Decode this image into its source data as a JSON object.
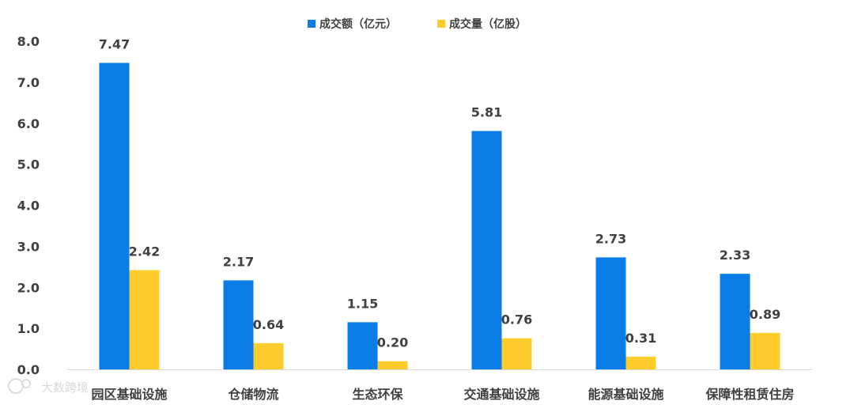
{
  "chart_data": {
    "type": "bar",
    "categories": [
      "园区基础设施",
      "仓储物流",
      "生态环保",
      "交通基础设施",
      "能源基础设施",
      "保障性租赁住房"
    ],
    "series": [
      {
        "name": "成交额（亿元）",
        "color": "#0a7ce6",
        "values": [
          7.47,
          2.17,
          1.15,
          5.81,
          2.73,
          2.33
        ]
      },
      {
        "name": "成交量（亿股）",
        "color": "#ffcc2e",
        "values": [
          2.42,
          0.64,
          0.2,
          0.76,
          0.31,
          0.89
        ]
      }
    ],
    "ylim": [
      0,
      8
    ],
    "yticks": [
      "0.0",
      "1.0",
      "2.0",
      "3.0",
      "4.0",
      "5.0",
      "6.0",
      "7.0",
      "8.0"
    ],
    "grid": false,
    "legend": "top-center",
    "data_labels": true
  },
  "watermark": {
    "text": "大数跨境",
    "icon": "logo-icon"
  }
}
